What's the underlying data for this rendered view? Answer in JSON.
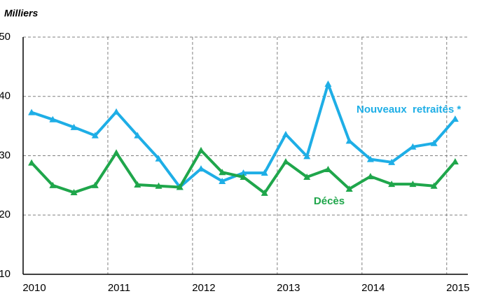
{
  "chart_data": {
    "type": "line",
    "unit_label": "Milliers",
    "x": [
      2010.1,
      2010.35,
      2010.6,
      2010.85,
      2011.1,
      2011.35,
      2011.6,
      2011.85,
      2012.1,
      2012.35,
      2012.6,
      2012.85,
      2013.1,
      2013.35,
      2013.6,
      2013.85,
      2014.1,
      2014.35,
      2014.6,
      2014.85,
      2015.1
    ],
    "series": [
      {
        "name": "Nouveaux  retraités *",
        "color": "#1eaee6",
        "values": [
          37.3,
          36.1,
          34.8,
          33.4,
          37.4,
          33.4,
          29.5,
          24.7,
          27.8,
          25.7,
          27.1,
          27.1,
          33.6,
          29.9,
          42.1,
          32.5,
          29.4,
          28.9,
          31.5,
          32.1,
          36.2
        ]
      },
      {
        "name": "Décès",
        "color": "#1fa64b",
        "values": [
          28.8,
          25.0,
          23.8,
          25.0,
          30.5,
          25.1,
          24.9,
          24.7,
          30.9,
          27.2,
          26.4,
          23.7,
          29.0,
          26.4,
          27.7,
          24.4,
          26.5,
          25.2,
          25.2,
          24.9,
          29.0
        ]
      }
    ],
    "xlim": [
      2010,
      2015.25
    ],
    "xticks": [
      2010,
      2011,
      2012,
      2013,
      2014,
      2015
    ],
    "ylim": [
      10,
      50
    ],
    "yticks": [
      10,
      20,
      30,
      40,
      50
    ],
    "grid": true
  }
}
